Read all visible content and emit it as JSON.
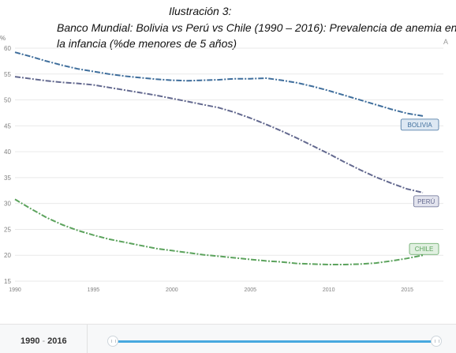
{
  "caption": {
    "figure_label": "Ilustración 3:",
    "line1": "Banco Mundial: Bolivia vs Perú vs Chile (1990 – 2016): Prevalencia de anemia en",
    "line2": "la infancia (%de menores de 5 años)"
  },
  "axis_unit_symbol": "%",
  "corner_letter": "A",
  "footer": {
    "range_start": "1990",
    "range_end": "2016"
  },
  "colors": {
    "bolivia": "#3f6e9c",
    "peru": "#63698f",
    "chile": "#5ca35d",
    "grid": "#e9e9e9",
    "slider": "#47a8df"
  },
  "chart_data": {
    "type": "line",
    "title": "Banco Mundial: Bolivia vs Perú vs Chile (1990 – 2016): Prevalencia de anemia en la infancia (%de menores de 5 años)",
    "xlabel": "",
    "ylabel": "%",
    "xlim": [
      1990,
      2016
    ],
    "ylim": [
      15,
      60
    ],
    "x_ticks": [
      1990,
      1995,
      2000,
      2005,
      2010,
      2015
    ],
    "y_ticks": [
      15,
      20,
      25,
      30,
      35,
      40,
      45,
      50,
      55,
      60
    ],
    "grid": true,
    "legend": "inline-labels-right",
    "x": [
      1990,
      1991,
      1992,
      1993,
      1994,
      1995,
      1996,
      1997,
      1998,
      1999,
      2000,
      2001,
      2002,
      2003,
      2004,
      2005,
      2006,
      2007,
      2008,
      2009,
      2010,
      2011,
      2012,
      2013,
      2014,
      2015,
      2016
    ],
    "series": [
      {
        "name": "BOLIVIA",
        "values": [
          59.2,
          58.4,
          57.5,
          56.7,
          56.0,
          55.5,
          55.0,
          54.6,
          54.3,
          54.0,
          53.8,
          53.7,
          53.8,
          53.9,
          54.1,
          54.1,
          54.2,
          53.8,
          53.3,
          52.6,
          51.8,
          50.9,
          50.0,
          49.1,
          48.2,
          47.4,
          46.9
        ]
      },
      {
        "name": "PERÚ",
        "values": [
          54.5,
          54.1,
          53.7,
          53.4,
          53.2,
          52.9,
          52.4,
          51.9,
          51.4,
          50.9,
          50.3,
          49.7,
          49.1,
          48.5,
          47.6,
          46.5,
          45.3,
          44.0,
          42.6,
          41.1,
          39.6,
          38.0,
          36.5,
          35.1,
          33.9,
          32.8,
          32.1
        ]
      },
      {
        "name": "CHILE",
        "values": [
          30.8,
          29.0,
          27.3,
          25.9,
          24.8,
          23.9,
          23.1,
          22.5,
          21.9,
          21.3,
          20.9,
          20.5,
          20.1,
          19.8,
          19.5,
          19.2,
          18.9,
          18.7,
          18.4,
          18.3,
          18.2,
          18.2,
          18.3,
          18.5,
          18.9,
          19.4,
          20.0
        ]
      }
    ]
  }
}
